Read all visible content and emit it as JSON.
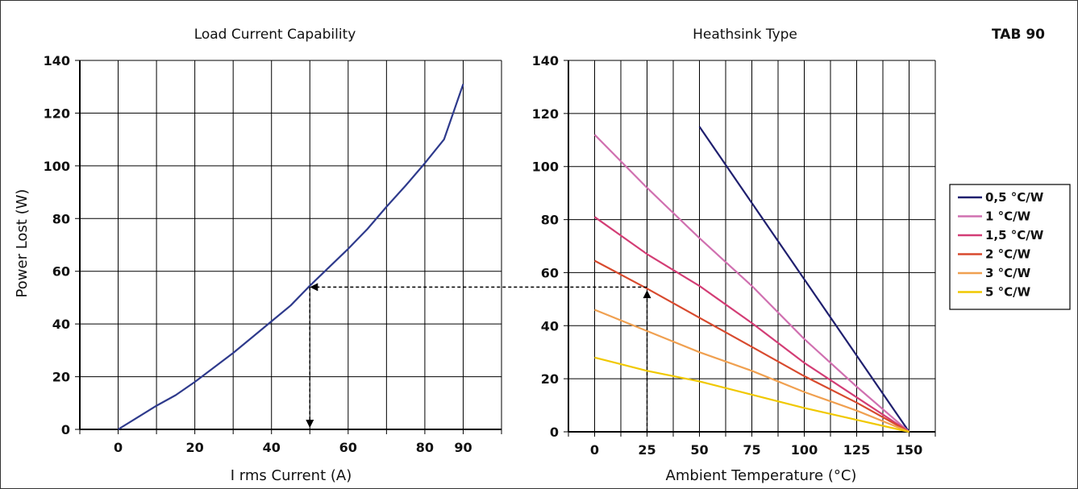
{
  "corner_label": "TAB 90",
  "colors": {
    "grid": "#000000",
    "curve": "#2e3a8c",
    "guide": "#000000"
  },
  "chart_data": [
    {
      "type": "line",
      "title": "Load Current Capability",
      "xlabel": "I rms Current (A)",
      "ylabel": "Power Lost (W)",
      "xlim": [
        -10,
        100
      ],
      "ylim": [
        0,
        140
      ],
      "xticks": [
        0,
        20,
        40,
        60,
        80,
        90
      ],
      "xtick_labels": [
        "0",
        "20",
        "40",
        "60",
        "80",
        "90"
      ],
      "yticks": [
        0,
        20,
        40,
        60,
        80,
        100,
        120,
        140
      ],
      "ytick_labels": [
        "0",
        "20",
        "40",
        "60",
        "80",
        "100",
        "120",
        "140"
      ],
      "grid": true,
      "series": [
        {
          "color": "#2e3a8c",
          "x": [
            0,
            5,
            10,
            15,
            20,
            25,
            30,
            35,
            40,
            45,
            50,
            55,
            60,
            65,
            70,
            75,
            80,
            85,
            90
          ],
          "y": [
            0,
            4.5,
            9,
            13,
            18,
            23.5,
            29,
            35,
            41,
            47,
            54.5,
            61.5,
            68.5,
            76,
            84.5,
            92.5,
            101,
            110,
            131
          ]
        }
      ],
      "annotation": {
        "x": 50,
        "y": 54,
        "note": "dashed guide from x=50 down to axis and across to right chart"
      }
    },
    {
      "type": "line",
      "title": "Heathsink Type",
      "xlabel": "Ambient Temperature (°C)",
      "ylabel": "",
      "xlim": [
        -12.5,
        162.5
      ],
      "ylim": [
        0,
        140
      ],
      "xticks": [
        0,
        25,
        50,
        75,
        100,
        125,
        150
      ],
      "xtick_labels": [
        "0",
        "25",
        "50",
        "75",
        "100",
        "125",
        "150"
      ],
      "yticks": [
        0,
        20,
        40,
        60,
        80,
        100,
        120,
        140
      ],
      "ytick_labels": [
        "0",
        "20",
        "40",
        "60",
        "80",
        "100",
        "120",
        "140"
      ],
      "grid": true,
      "legend_position": "right",
      "series": [
        {
          "name": "0,5 °C/W",
          "color": "#1f1f6e",
          "x": [
            50,
            150
          ],
          "y": [
            115,
            0
          ]
        },
        {
          "name": "1 °C/W",
          "color": "#d070b0",
          "x": [
            0,
            25,
            50,
            75,
            100,
            125,
            150
          ],
          "y": [
            112,
            92,
            73,
            55,
            35,
            17,
            0
          ]
        },
        {
          "name": "1,5 °C/W",
          "color": "#d33d75",
          "x": [
            0,
            25,
            50,
            75,
            100,
            125,
            150
          ],
          "y": [
            81,
            67,
            55,
            41,
            26,
            13,
            0
          ]
        },
        {
          "name": "2 °C/W",
          "color": "#d84a2e",
          "x": [
            0,
            25,
            50,
            75,
            100,
            125,
            150
          ],
          "y": [
            64.5,
            54,
            43,
            32,
            21,
            11,
            0
          ]
        },
        {
          "name": "3 °C/W",
          "color": "#f0a050",
          "x": [
            0,
            25,
            50,
            75,
            100,
            125,
            150
          ],
          "y": [
            46,
            38,
            30,
            23,
            15,
            8,
            0
          ]
        },
        {
          "name": "5 °C/W",
          "color": "#f0c800",
          "x": [
            0,
            25,
            50,
            75,
            100,
            125,
            150
          ],
          "y": [
            28,
            23,
            19,
            14,
            9,
            4.5,
            0
          ]
        }
      ],
      "annotation": {
        "x": 25,
        "y": 54
      }
    }
  ]
}
